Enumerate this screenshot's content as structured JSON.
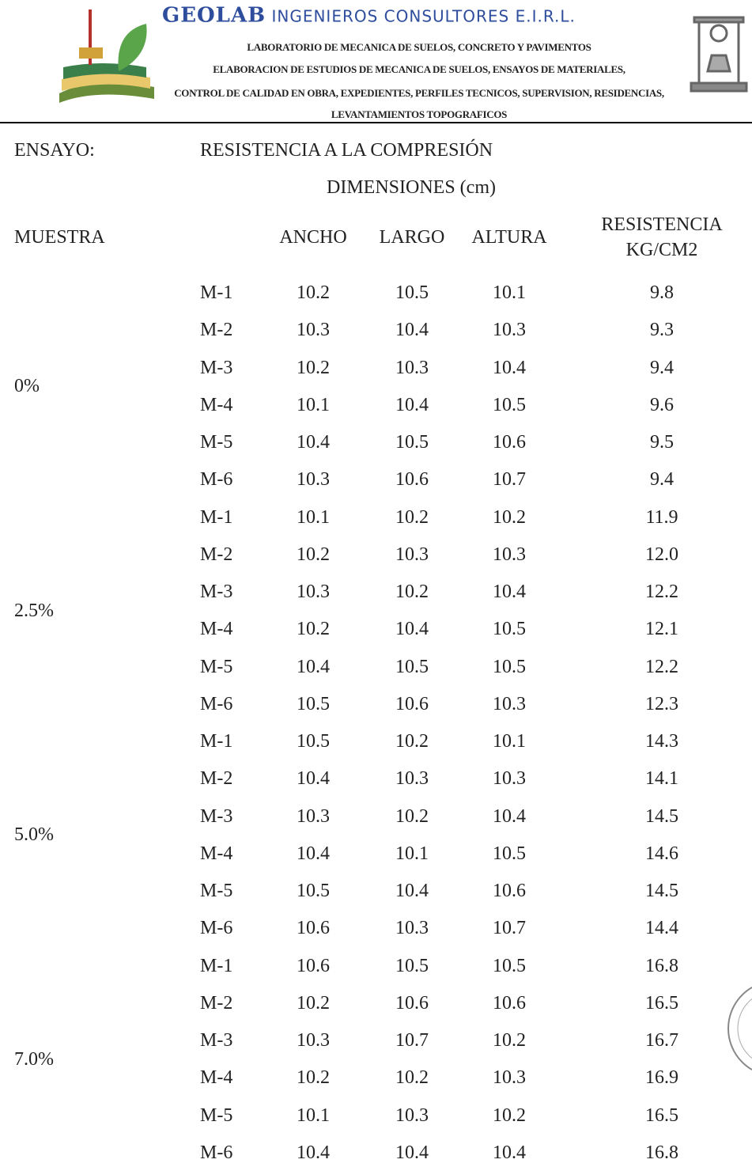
{
  "header": {
    "brand": "GEOLAB",
    "company": "INGENIEROS CONSULTORES E.I.R.L.",
    "lines": [
      "LABORATORIO DE MECANICA DE SUELOS, CONCRETO Y PAVIMENTOS",
      "ELABORACION DE ESTUDIOS DE MECANICA DE SUELOS, ENSAYOS DE MATERIALES,",
      "CONTROL DE CALIDAD EN OBRA, EXPEDIENTES, PERFILES TECNICOS, SUPERVISION, RESIDENCIAS,",
      "LEVANTAMIENTOS TOPOGRAFICOS"
    ]
  },
  "test": {
    "label": "ENSAYO:",
    "name": "RESISTENCIA A LA COMPRESIÓN"
  },
  "table": {
    "group_header": "DIMENSIONES (cm)",
    "columns": [
      "MUESTRA",
      "ANCHO",
      "LARGO",
      "ALTURA",
      [
        "RESISTENCIA",
        "KG/CM2"
      ]
    ],
    "groups": [
      {
        "label": "0%",
        "rows": [
          [
            "M-1",
            "10.2",
            "10.5",
            "10.1",
            "9.8"
          ],
          [
            "M-2",
            "10.3",
            "10.4",
            "10.3",
            "9.3"
          ],
          [
            "M-3",
            "10.2",
            "10.3",
            "10.4",
            "9.4"
          ],
          [
            "M-4",
            "10.1",
            "10.4",
            "10.5",
            "9.6"
          ],
          [
            "M-5",
            "10.4",
            "10.5",
            "10.6",
            "9.5"
          ],
          [
            "M-6",
            "10.3",
            "10.6",
            "10.7",
            "9.4"
          ]
        ]
      },
      {
        "label": "2.5%",
        "rows": [
          [
            "M-1",
            "10.1",
            "10.2",
            "10.2",
            "11.9"
          ],
          [
            "M-2",
            "10.2",
            "10.3",
            "10.3",
            "12.0"
          ],
          [
            "M-3",
            "10.3",
            "10.2",
            "10.4",
            "12.2"
          ],
          [
            "M-4",
            "10.2",
            "10.4",
            "10.5",
            "12.1"
          ],
          [
            "M-5",
            "10.4",
            "10.5",
            "10.5",
            "12.2"
          ],
          [
            "M-6",
            "10.5",
            "10.6",
            "10.3",
            "12.3"
          ]
        ]
      },
      {
        "label": "5.0%",
        "rows": [
          [
            "M-1",
            "10.5",
            "10.2",
            "10.1",
            "14.3"
          ],
          [
            "M-2",
            "10.4",
            "10.3",
            "10.3",
            "14.1"
          ],
          [
            "M-3",
            "10.3",
            "10.2",
            "10.4",
            "14.5"
          ],
          [
            "M-4",
            "10.4",
            "10.1",
            "10.5",
            "14.6"
          ],
          [
            "M-5",
            "10.5",
            "10.4",
            "10.6",
            "14.5"
          ],
          [
            "M-6",
            "10.6",
            "10.3",
            "10.7",
            "14.4"
          ]
        ]
      },
      {
        "label": "7.0%",
        "rows": [
          [
            "M-1",
            "10.6",
            "10.5",
            "10.5",
            "16.8"
          ],
          [
            "M-2",
            "10.2",
            "10.6",
            "10.6",
            "16.5"
          ],
          [
            "M-3",
            "10.3",
            "10.7",
            "10.2",
            "16.7"
          ],
          [
            "M-4",
            "10.2",
            "10.2",
            "10.3",
            "16.9"
          ],
          [
            "M-5",
            "10.1",
            "10.3",
            "10.2",
            "16.5"
          ],
          [
            "M-6",
            "10.4",
            "10.4",
            "10.4",
            "16.8"
          ]
        ]
      }
    ]
  }
}
